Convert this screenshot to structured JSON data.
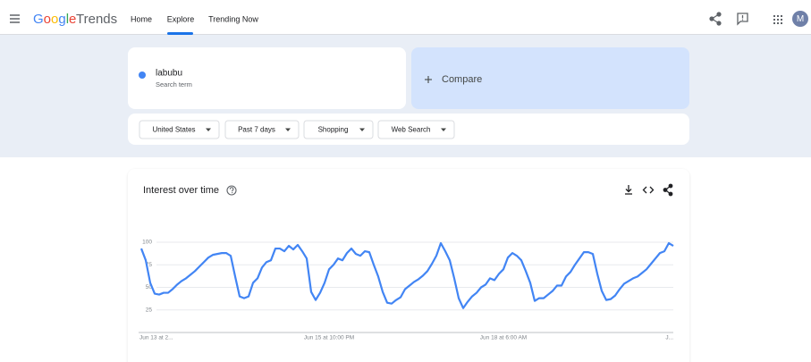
{
  "header": {
    "logo_google": "Google",
    "logo_trends": "Trends",
    "nav": [
      "Home",
      "Explore",
      "Trending Now"
    ],
    "avatar": "M"
  },
  "search": {
    "term": "labubu",
    "term_caption": "Search term",
    "compare": "Compare"
  },
  "filters": [
    "United States",
    "Past 7 days",
    "Shopping",
    "Web Search"
  ],
  "chart_data": {
    "type": "line",
    "title": "Interest over time",
    "color": "#4285f4",
    "grid": true,
    "ylim": [
      0,
      100
    ],
    "yticks": [
      25,
      50,
      75,
      100
    ],
    "categories": [
      "Jun 13 at 2...",
      null,
      null,
      null,
      null,
      null,
      null,
      null,
      null,
      null,
      null,
      null,
      null,
      null,
      null,
      null,
      null,
      null,
      null,
      null,
      null,
      null,
      null,
      null,
      null,
      null,
      null,
      null,
      null,
      null,
      null,
      null,
      null,
      null,
      null,
      null,
      null,
      null,
      null,
      null,
      null,
      null,
      "Jun 15 at 10:00 PM",
      null,
      null,
      null,
      null,
      null,
      null,
      null,
      null,
      null,
      null,
      null,
      null,
      null,
      null,
      null,
      null,
      null,
      null,
      null,
      null,
      null,
      null,
      null,
      null,
      null,
      null,
      null,
      null,
      null,
      null,
      null,
      null,
      null,
      null,
      null,
      null,
      null,
      null,
      "Jun 18 at 6:00 AM",
      null,
      null,
      null,
      null,
      null,
      null,
      null,
      null,
      null,
      null,
      null,
      null,
      null,
      null,
      null,
      null,
      null,
      null,
      null,
      null,
      null,
      null,
      null,
      null,
      null,
      null,
      null,
      null,
      null,
      null,
      null,
      null,
      null,
      null,
      null,
      null,
      null,
      "J..."
    ],
    "values": [
      93,
      80,
      55,
      43,
      42,
      44,
      44,
      48,
      53,
      57,
      60,
      64,
      68,
      73,
      78,
      83,
      86,
      87,
      88,
      88,
      85,
      62,
      40,
      38,
      40,
      55,
      60,
      72,
      78,
      80,
      93,
      93,
      90,
      96,
      92,
      97,
      90,
      82,
      45,
      36,
      44,
      55,
      70,
      75,
      82,
      80,
      88,
      93,
      87,
      85,
      90,
      89,
      75,
      62,
      45,
      33,
      32,
      36,
      39,
      48,
      52,
      56,
      59,
      63,
      68,
      76,
      85,
      99,
      90,
      80,
      60,
      38,
      27,
      34,
      40,
      44,
      50,
      53,
      60,
      58,
      65,
      70,
      83,
      88,
      85,
      80,
      68,
      55,
      35,
      38,
      38,
      42,
      46,
      52,
      52,
      62,
      67,
      75,
      82,
      89,
      89,
      87,
      65,
      46,
      36,
      37,
      41,
      48,
      54,
      57,
      60,
      62,
      66,
      70,
      76,
      82,
      88,
      90,
      99,
      96
    ]
  }
}
